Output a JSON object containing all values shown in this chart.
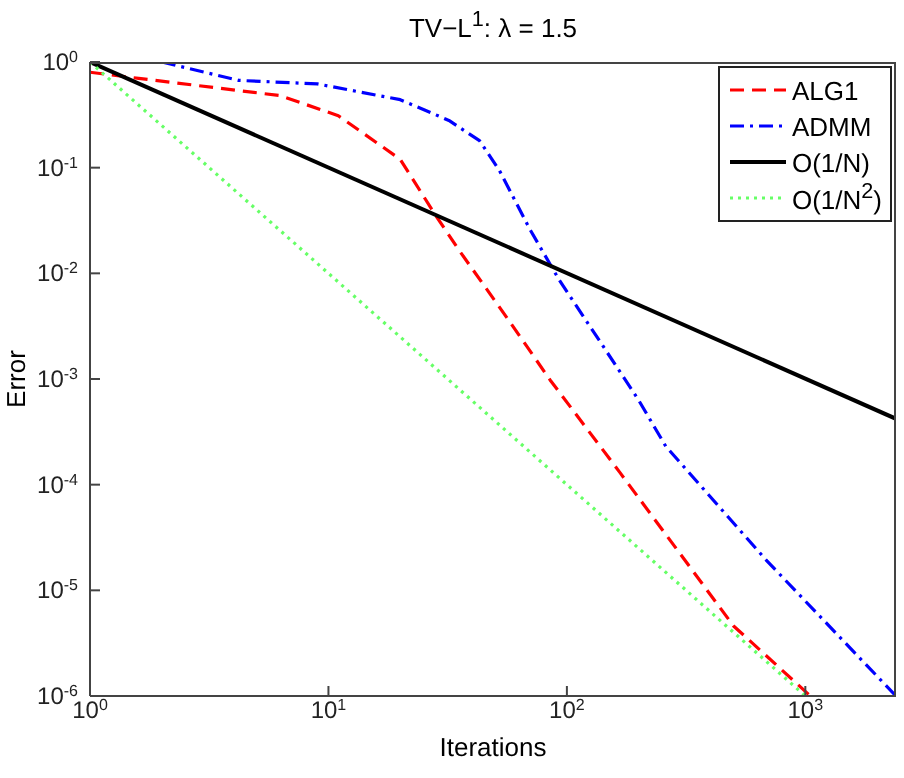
{
  "chart_data": {
    "type": "line",
    "title": "TV−L$^{1}$: λ = 1.5",
    "xlabel": "Iterations",
    "ylabel": "Error",
    "log": "xy",
    "grid": false,
    "legend": "top right",
    "marker": "none",
    "xlim": [
      1,
      2400
    ],
    "xticks": [
      {
        "value": 1,
        "label": "10$^{0}$"
      },
      {
        "value": 10,
        "label": "10$^{1}$"
      },
      {
        "value": 100,
        "label": "10$^{2}$"
      },
      {
        "value": 1000,
        "label": "10$^{3}$"
      }
    ],
    "ylim": [
      1e-06,
      1
    ],
    "yticks": [
      {
        "value": 1e-06,
        "label": "10$^{-6}$"
      },
      {
        "value": 1e-05,
        "label": "10$^{-5}$"
      },
      {
        "value": 0.0001,
        "label": "10$^{-4}$"
      },
      {
        "value": 0.001,
        "label": "10$^{-3}$"
      },
      {
        "value": 0.01,
        "label": "10$^{-2}$"
      },
      {
        "value": 0.1,
        "label": "10$^{-1}$"
      },
      {
        "value": 1,
        "label": "10$^{0}$"
      }
    ],
    "series": [
      {
        "name": "ALG1",
        "color": "#ff0000",
        "line_style": "dashed",
        "x": [
          1,
          1.6,
          6.3,
          11,
          20,
          28,
          35,
          57,
          85,
          167,
          500,
          1050
        ],
        "values": [
          0.8,
          0.7,
          0.48,
          0.31,
          0.12,
          0.036,
          0.017,
          0.0036,
          0.00098,
          0.00013,
          4.6e-06,
          1e-06
        ]
      },
      {
        "name": "ADMM",
        "color": "#0000ff",
        "line_style": "dashdot",
        "x": [
          2,
          4.2,
          9,
          20,
          32,
          43,
          52,
          70,
          93,
          137,
          200,
          260,
          690,
          2400
        ],
        "values": [
          1,
          0.67,
          0.62,
          0.44,
          0.28,
          0.18,
          0.095,
          0.026,
          0.0086,
          0.0023,
          0.00063,
          0.00023,
          1.9e-05,
          1e-06
        ]
      },
      {
        "name": "O(1/N)",
        "color": "#000000",
        "line_style": "solid",
        "x": [
          1,
          2400
        ],
        "values": [
          1,
          0.00042
        ]
      },
      {
        "name": "O(1/N$^{2}$)",
        "color": "#66ff66",
        "line_style": "dotted",
        "x": [
          1,
          1000
        ],
        "values": [
          1,
          1e-06
        ]
      }
    ]
  }
}
